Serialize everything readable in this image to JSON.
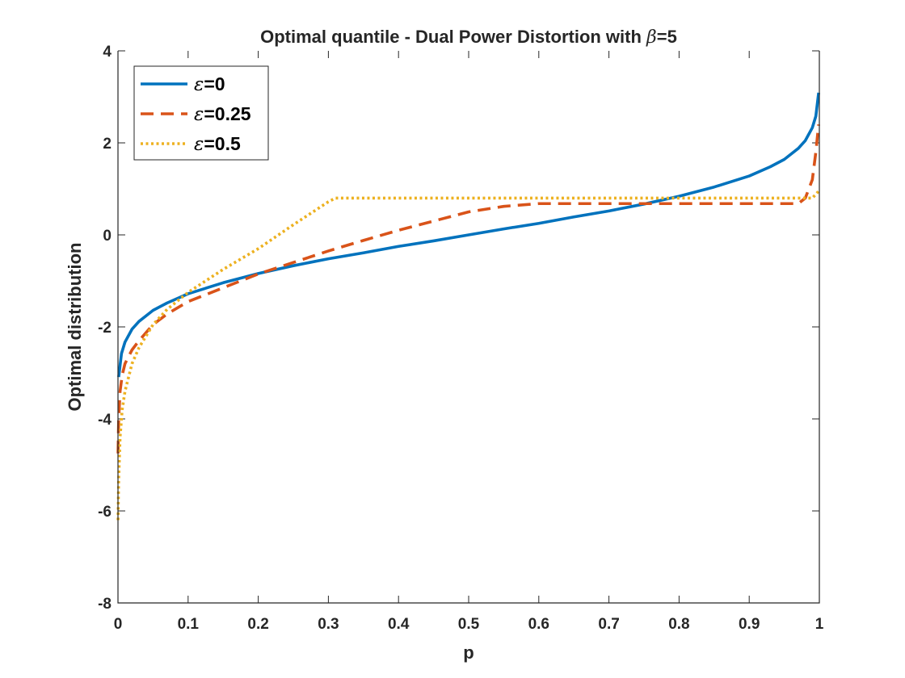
{
  "chart_data": {
    "type": "line",
    "title": {
      "prefix": "Optimal quantile - Dual Power Distortion with ",
      "symbol": "β",
      "suffix": "=5"
    },
    "xlabel": "p",
    "ylabel": "Optimal distribution",
    "xlim": [
      0,
      1
    ],
    "ylim": [
      -8,
      4
    ],
    "xticks": [
      0,
      0.1,
      0.2,
      0.3,
      0.4,
      0.5,
      0.6,
      0.7,
      0.8,
      0.9,
      1
    ],
    "xtick_labels": [
      "0",
      "0.1",
      "0.2",
      "0.3",
      "0.4",
      "0.5",
      "0.6",
      "0.7",
      "0.8",
      "0.9",
      "1"
    ],
    "yticks": [
      -8,
      -6,
      -4,
      -2,
      0,
      2,
      4
    ],
    "ytick_labels": [
      "-8",
      "-6",
      "-4",
      "-2",
      "0",
      "2",
      "4"
    ],
    "grid": false,
    "legend_position": "top-left",
    "series": [
      {
        "name": "ε=0",
        "symbol": "ε",
        "label_suffix": "=0",
        "color": "#0072BD",
        "style": "solid",
        "x": [
          0.001,
          0.005,
          0.01,
          0.02,
          0.03,
          0.05,
          0.07,
          0.1,
          0.15,
          0.2,
          0.25,
          0.3,
          0.35,
          0.4,
          0.45,
          0.5,
          0.55,
          0.6,
          0.65,
          0.7,
          0.75,
          0.8,
          0.85,
          0.9,
          0.93,
          0.95,
          0.97,
          0.98,
          0.99,
          0.995,
          0.999
        ],
        "y": [
          -3.09,
          -2.58,
          -2.33,
          -2.05,
          -1.88,
          -1.64,
          -1.48,
          -1.28,
          -1.04,
          -0.84,
          -0.67,
          -0.52,
          -0.39,
          -0.25,
          -0.13,
          0.0,
          0.13,
          0.25,
          0.39,
          0.52,
          0.67,
          0.84,
          1.04,
          1.28,
          1.48,
          1.64,
          1.88,
          2.05,
          2.33,
          2.58,
          3.09
        ]
      },
      {
        "name": "ε=0.25",
        "symbol": "ε",
        "label_suffix": "=0.25",
        "color": "#D95319",
        "style": "dashed",
        "x": [
          0.0001,
          0.001,
          0.003,
          0.006,
          0.01,
          0.02,
          0.03,
          0.05,
          0.07,
          0.1,
          0.15,
          0.2,
          0.25,
          0.3,
          0.35,
          0.4,
          0.45,
          0.5,
          0.55,
          0.6,
          0.7,
          0.8,
          0.9,
          0.97,
          0.98,
          0.99,
          0.995,
          0.999
        ],
        "y": [
          -4.75,
          -4.0,
          -3.4,
          -3.05,
          -2.8,
          -2.5,
          -2.3,
          -1.95,
          -1.72,
          -1.45,
          -1.15,
          -0.85,
          -0.6,
          -0.35,
          -0.12,
          0.1,
          0.3,
          0.5,
          0.62,
          0.68,
          0.68,
          0.68,
          0.68,
          0.68,
          0.8,
          1.2,
          1.8,
          2.4
        ]
      },
      {
        "name": "ε=0.5",
        "symbol": "ε",
        "label_suffix": "=0.5",
        "color": "#EDB120",
        "style": "dotted",
        "x": [
          0.0001,
          0.001,
          0.003,
          0.006,
          0.01,
          0.02,
          0.03,
          0.05,
          0.07,
          0.1,
          0.15,
          0.2,
          0.25,
          0.3,
          0.31,
          0.5,
          0.7,
          0.9,
          0.99,
          0.999
        ],
        "y": [
          -6.2,
          -5.3,
          -4.4,
          -3.8,
          -3.4,
          -2.8,
          -2.45,
          -1.95,
          -1.62,
          -1.25,
          -0.75,
          -0.3,
          0.22,
          0.72,
          0.8,
          0.8,
          0.8,
          0.8,
          0.8,
          0.95
        ]
      }
    ]
  }
}
